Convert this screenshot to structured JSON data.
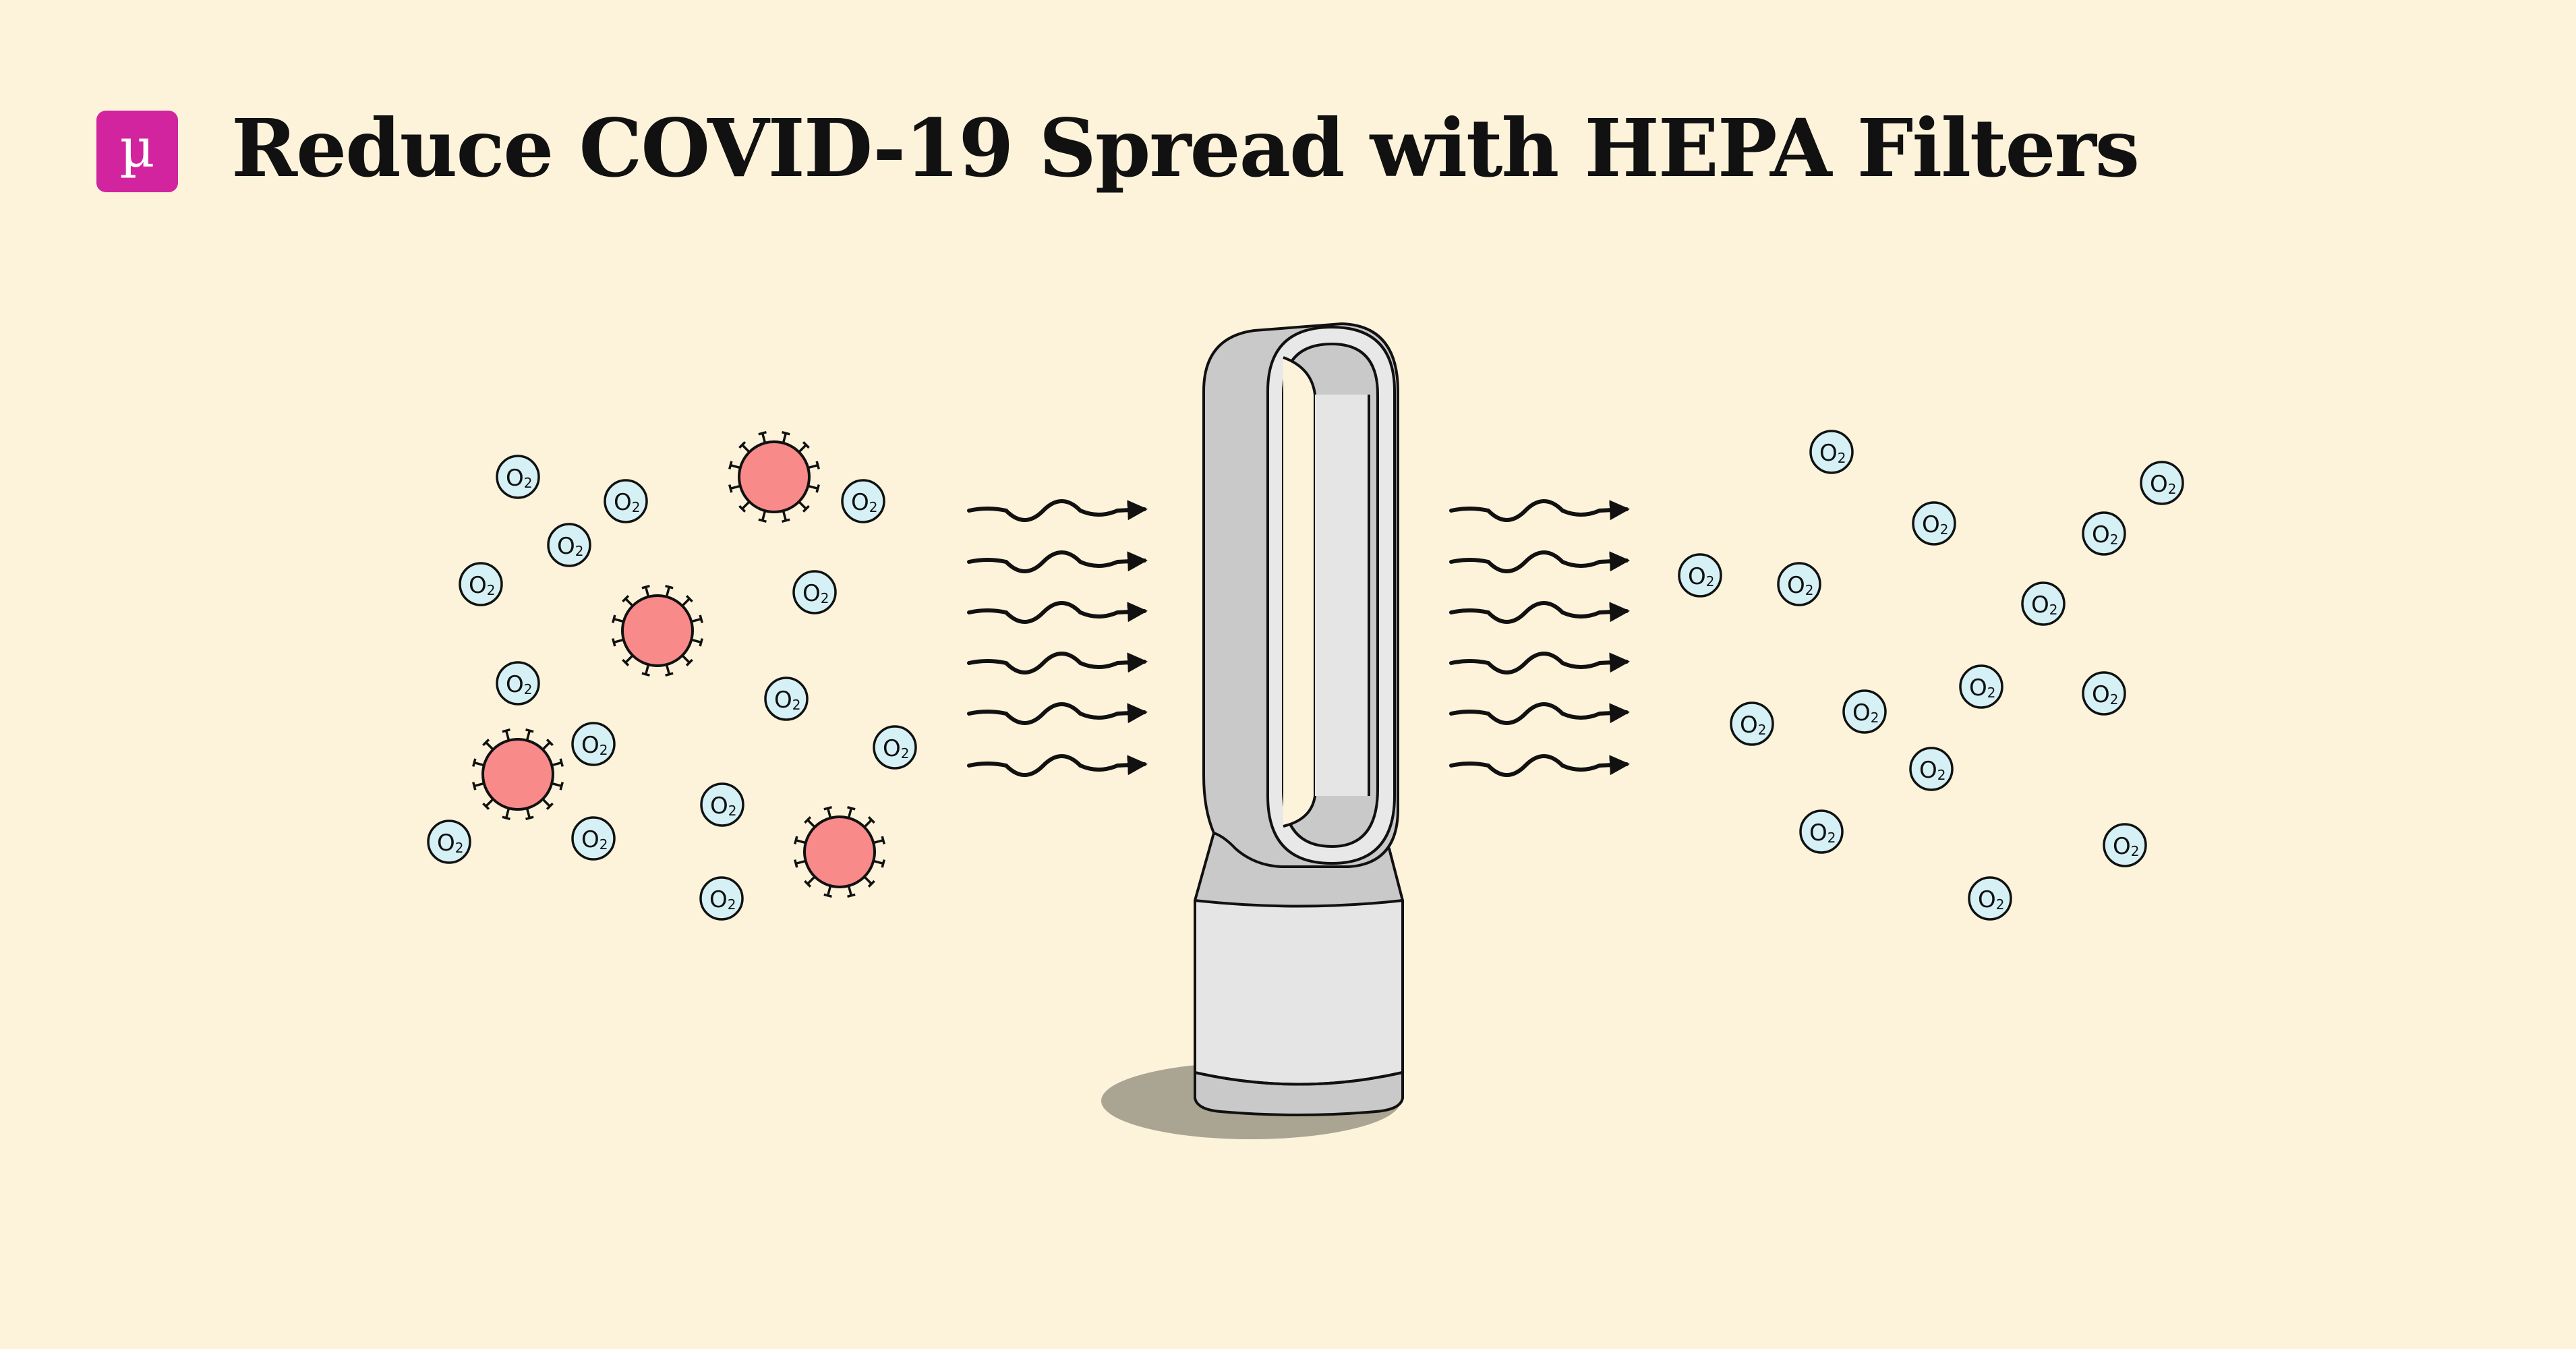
{
  "header": {
    "logo_glyph": "µ",
    "title": "Reduce COVID-19 Spread with HEPA Filters"
  },
  "molecule_label": {
    "main": "O",
    "sub": "2"
  },
  "colors": {
    "background": "#fdf3da",
    "logo": "#d1249e",
    "molecule_fill": "#d6f1f6",
    "virus_fill": "#f98a8a",
    "purifier_body": "#c9c9c9",
    "purifier_light": "#e5e5e5",
    "shadow": "#aaa593"
  },
  "icons": [
    "mu-logo-icon",
    "oxygen-molecule-icon",
    "virus-icon",
    "airflow-arrow-icon",
    "air-purifier-icon"
  ]
}
